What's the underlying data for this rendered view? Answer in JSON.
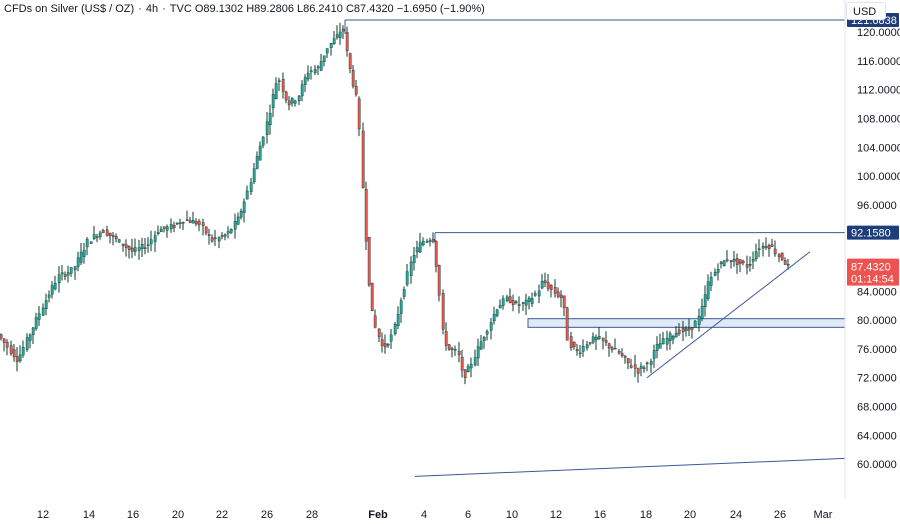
{
  "header": {
    "title": "CFDs on Silver (US$ / OZ)",
    "interval": "4h",
    "source": "TVC",
    "open": "O89.1302",
    "high": "H89.2806",
    "low": "L86.2410",
    "close": "C87.4320",
    "change": "−1.6950 (−1.90%)"
  },
  "currency_button": "USD",
  "colors": {
    "up": "#26a69a",
    "down": "#ef5350",
    "dark": "#0d3b2e",
    "line": "#3b5998",
    "zone": "#c9dbf2"
  },
  "chart_data": {
    "type": "candlestick",
    "y_axis": {
      "min": 58,
      "max": 124,
      "ticks": [
        "120.0000",
        "116.0000",
        "112.0000",
        "108.0000",
        "104.0000",
        "100.0000",
        "96.0000",
        "92.0000",
        "88.0000",
        "84.0000",
        "80.0000",
        "76.0000",
        "72.0000",
        "68.0000",
        "64.0000",
        "60.0000"
      ]
    },
    "x_axis": {
      "labels": [
        "12",
        "14",
        "16",
        "20",
        "22",
        "26",
        "28",
        "Feb",
        "4",
        "6",
        "10",
        "12",
        "16",
        "18",
        "20",
        "24",
        "26",
        "Mar"
      ]
    },
    "levels": [
      {
        "label": "121.6838",
        "value": 121.6838
      },
      {
        "label": "92.1580",
        "value": 92.158
      }
    ],
    "last_price": {
      "label": "87.4320",
      "countdown": "01:14:54",
      "value": 87.432
    },
    "support_zone": {
      "from": 79.0,
      "to": 80.2
    },
    "path": [
      [
        0,
        78.0
      ],
      [
        20,
        74.5
      ],
      [
        45,
        82
      ],
      [
        60,
        86
      ],
      [
        75,
        87
      ],
      [
        90,
        91
      ],
      [
        105,
        92.5
      ],
      [
        120,
        91
      ],
      [
        135,
        89.5
      ],
      [
        150,
        90.5
      ],
      [
        160,
        92.5
      ],
      [
        175,
        93
      ],
      [
        185,
        94
      ],
      [
        200,
        93.5
      ],
      [
        215,
        91
      ],
      [
        230,
        92
      ],
      [
        240,
        94
      ],
      [
        250,
        98
      ],
      [
        260,
        103
      ],
      [
        270,
        108
      ],
      [
        280,
        114
      ],
      [
        290,
        110
      ],
      [
        300,
        111
      ],
      [
        310,
        114.5
      ],
      [
        320,
        115
      ],
      [
        330,
        118
      ],
      [
        340,
        119.5
      ],
      [
        345,
        120.8
      ],
      [
        350,
        116
      ],
      [
        355,
        113
      ],
      [
        360,
        110
      ],
      [
        365,
        98
      ],
      [
        370,
        87
      ],
      [
        375,
        80
      ],
      [
        385,
        76
      ],
      [
        395,
        78
      ],
      [
        405,
        84
      ],
      [
        415,
        89
      ],
      [
        425,
        91
      ],
      [
        435,
        91.5
      ],
      [
        440,
        86
      ],
      [
        445,
        78
      ],
      [
        450,
        76
      ],
      [
        460,
        75.5
      ],
      [
        465,
        72
      ],
      [
        470,
        73
      ],
      [
        480,
        76
      ],
      [
        490,
        79
      ],
      [
        500,
        82
      ],
      [
        510,
        83
      ],
      [
        520,
        82
      ],
      [
        530,
        82.5
      ],
      [
        540,
        84
      ],
      [
        545,
        85.5
      ],
      [
        555,
        84
      ],
      [
        565,
        83
      ],
      [
        570,
        77
      ],
      [
        580,
        75.5
      ],
      [
        590,
        77
      ],
      [
        600,
        77.5
      ],
      [
        610,
        76.5
      ],
      [
        620,
        75.5
      ],
      [
        630,
        74
      ],
      [
        640,
        73
      ],
      [
        650,
        74
      ],
      [
        660,
        76.5
      ],
      [
        670,
        77.5
      ],
      [
        680,
        78.5
      ],
      [
        690,
        78.5
      ],
      [
        700,
        80
      ],
      [
        705,
        82
      ],
      [
        710,
        85
      ],
      [
        720,
        87.5
      ],
      [
        730,
        88.5
      ],
      [
        740,
        88
      ],
      [
        750,
        87.5
      ],
      [
        760,
        90
      ],
      [
        770,
        90.5
      ],
      [
        775,
        90
      ],
      [
        780,
        89
      ],
      [
        785,
        88.5
      ],
      [
        790,
        87.4
      ]
    ],
    "trendlines": [
      {
        "from": [
          647,
          72.0
        ],
        "to": [
          810,
          89.5
        ]
      },
      {
        "from": [
          415,
          58.3
        ],
        "to": [
          845,
          60.8
        ]
      }
    ]
  }
}
